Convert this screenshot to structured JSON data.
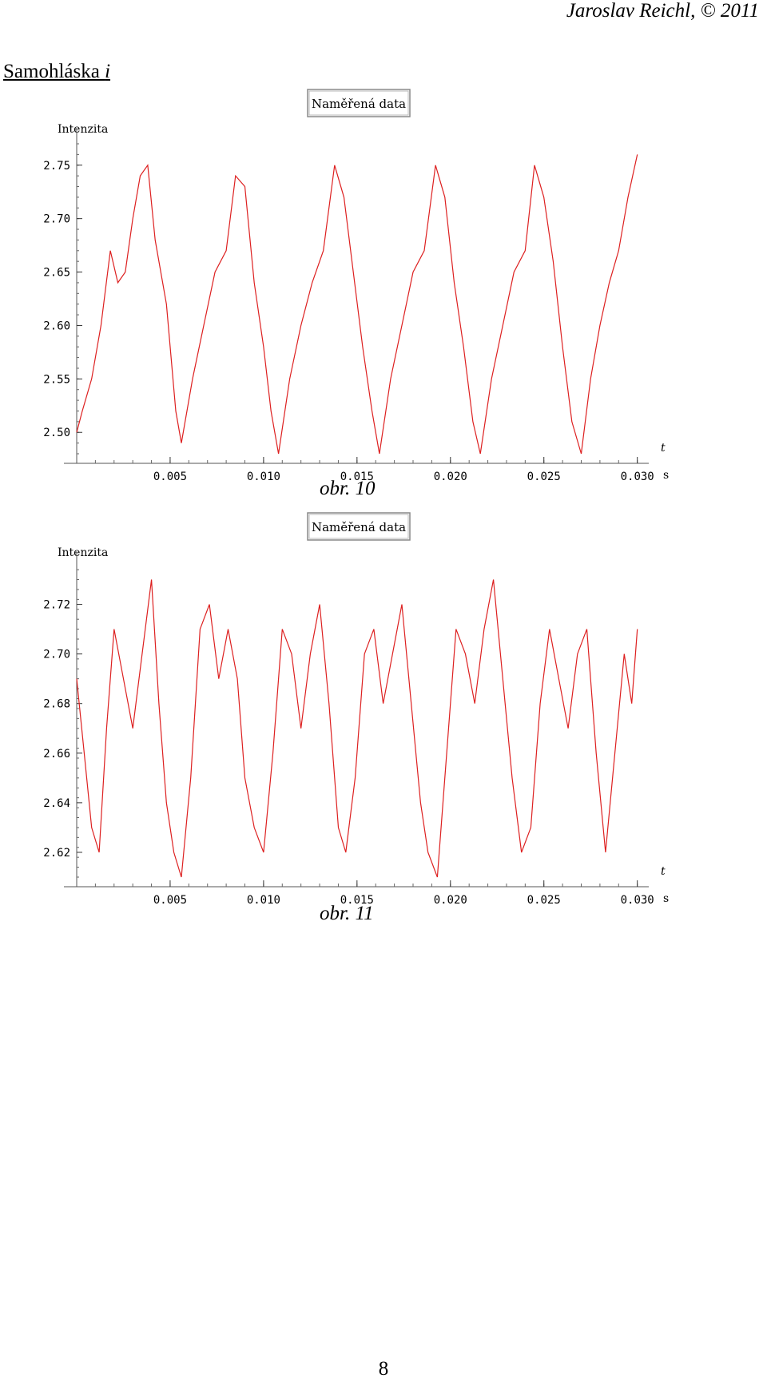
{
  "header": {
    "author": "Jaroslav Reichl, © 2011"
  },
  "section": {
    "title_prefix": "Samohláska ",
    "title_vowel": "i"
  },
  "page_number": "8",
  "chart_data": [
    {
      "type": "line",
      "caption": "obr. 10",
      "legend": "Naměřená data",
      "ylabel": "Intenzita",
      "xlabel": "t",
      "xunit": "s",
      "xlim": [
        0,
        0.03
      ],
      "ylim": [
        2.48,
        2.77
      ],
      "xticks": [
        0.005,
        0.01,
        0.015,
        0.02,
        0.025,
        0.03
      ],
      "xtick_labels": [
        "0.005",
        "0.010",
        "0.015",
        "0.020",
        "0.025",
        "0.030"
      ],
      "yticks": [
        2.5,
        2.55,
        2.6,
        2.65,
        2.7,
        2.75
      ],
      "ytick_labels": [
        "2.50",
        "2.55",
        "2.60",
        "2.65",
        "2.70",
        "2.75"
      ],
      "color": "#dd2020",
      "series": [
        {
          "x": [
            0,
            0.0003,
            0.0008,
            0.0013,
            0.0018,
            0.0022,
            0.0026,
            0.003,
            0.0034,
            0.0038,
            0.0042,
            0.0048,
            0.0053,
            0.0056,
            0.0062,
            0.0068,
            0.0074,
            0.008,
            0.0085,
            0.009,
            0.0095,
            0.01,
            0.0104,
            0.0108,
            0.0114,
            0.012,
            0.0126,
            0.0132,
            0.0138,
            0.0143,
            0.0148,
            0.0153,
            0.0158,
            0.0162,
            0.0168,
            0.0174,
            0.018,
            0.0186,
            0.0192,
            0.0197,
            0.0202,
            0.0207,
            0.0212,
            0.0216,
            0.0222,
            0.0228,
            0.0234,
            0.024,
            0.0245,
            0.025,
            0.0255,
            0.026,
            0.0265,
            0.027,
            0.0275,
            0.028,
            0.0285,
            0.029,
            0.0295,
            0.03
          ],
          "y": [
            2.5,
            2.52,
            2.55,
            2.6,
            2.67,
            2.64,
            2.65,
            2.7,
            2.74,
            2.75,
            2.68,
            2.62,
            2.52,
            2.49,
            2.55,
            2.6,
            2.65,
            2.67,
            2.74,
            2.73,
            2.64,
            2.58,
            2.52,
            2.48,
            2.55,
            2.6,
            2.64,
            2.67,
            2.75,
            2.72,
            2.65,
            2.58,
            2.52,
            2.48,
            2.55,
            2.6,
            2.65,
            2.67,
            2.75,
            2.72,
            2.64,
            2.58,
            2.51,
            2.48,
            2.55,
            2.6,
            2.65,
            2.67,
            2.75,
            2.72,
            2.66,
            2.58,
            2.51,
            2.48,
            2.55,
            2.6,
            2.64,
            2.67,
            2.72,
            2.76
          ]
        }
      ]
    },
    {
      "type": "line",
      "caption": "obr. 11",
      "legend": "Naměřená data",
      "ylabel": "Intenzita",
      "xlabel": "t",
      "xunit": "s",
      "xlim": [
        0,
        0.03
      ],
      "ylim": [
        2.61,
        2.735
      ],
      "xticks": [
        0.005,
        0.01,
        0.015,
        0.02,
        0.025,
        0.03
      ],
      "xtick_labels": [
        "0.005",
        "0.010",
        "0.015",
        "0.020",
        "0.025",
        "0.030"
      ],
      "yticks": [
        2.62,
        2.64,
        2.66,
        2.68,
        2.7,
        2.72
      ],
      "ytick_labels": [
        "2.62",
        "2.64",
        "2.66",
        "2.68",
        "2.70",
        "2.72"
      ],
      "color": "#dd2020",
      "series": [
        {
          "x": [
            0,
            0.0004,
            0.0008,
            0.0012,
            0.0016,
            0.002,
            0.0025,
            0.003,
            0.0035,
            0.004,
            0.0044,
            0.0048,
            0.0052,
            0.0056,
            0.0061,
            0.0066,
            0.0071,
            0.0076,
            0.0081,
            0.0086,
            0.009,
            0.0095,
            0.01,
            0.0105,
            0.011,
            0.0115,
            0.012,
            0.0125,
            0.013,
            0.0135,
            0.014,
            0.0144,
            0.0149,
            0.0154,
            0.0159,
            0.0164,
            0.0169,
            0.0174,
            0.0179,
            0.0184,
            0.0188,
            0.0193,
            0.0198,
            0.0203,
            0.0208,
            0.0213,
            0.0218,
            0.0223,
            0.0228,
            0.0233,
            0.0238,
            0.0243,
            0.0248,
            0.0253,
            0.0258,
            0.0263,
            0.0268,
            0.0273,
            0.0278,
            0.0283,
            0.0288,
            0.0293,
            0.0297,
            0.03
          ],
          "y": [
            2.69,
            2.66,
            2.63,
            2.62,
            2.67,
            2.71,
            2.69,
            2.67,
            2.7,
            2.73,
            2.68,
            2.64,
            2.62,
            2.61,
            2.65,
            2.71,
            2.72,
            2.69,
            2.71,
            2.69,
            2.65,
            2.63,
            2.62,
            2.66,
            2.71,
            2.7,
            2.67,
            2.7,
            2.72,
            2.68,
            2.63,
            2.62,
            2.65,
            2.7,
            2.71,
            2.68,
            2.7,
            2.72,
            2.68,
            2.64,
            2.62,
            2.61,
            2.66,
            2.71,
            2.7,
            2.68,
            2.71,
            2.73,
            2.69,
            2.65,
            2.62,
            2.63,
            2.68,
            2.71,
            2.69,
            2.67,
            2.7,
            2.71,
            2.66,
            2.62,
            2.66,
            2.7,
            2.68,
            2.71
          ]
        }
      ]
    }
  ]
}
